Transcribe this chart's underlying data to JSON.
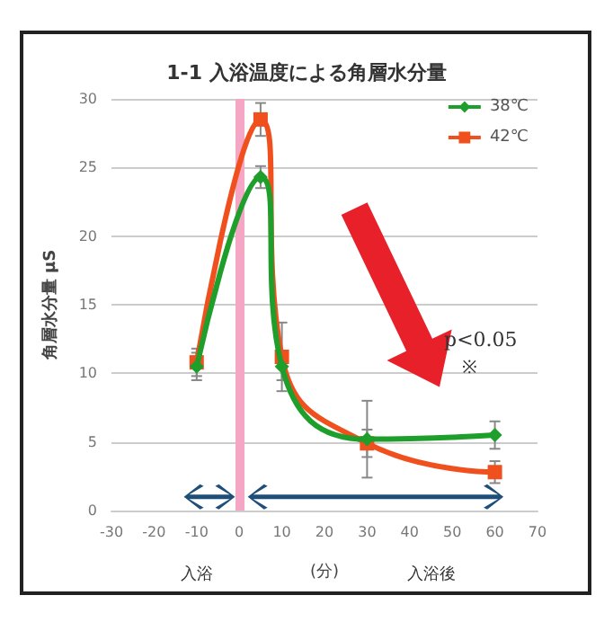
{
  "chart_data": {
    "type": "line",
    "title": "1-1 入浴温度による角層水分量",
    "xlabel": "(分)",
    "ylabel": "角層水分量 μS",
    "x": [
      -10,
      5,
      10,
      30,
      60
    ],
    "series": [
      {
        "name": "38℃",
        "color": "#1e9e2a",
        "marker": "diamond",
        "values": [
          10.5,
          24.3,
          10.5,
          5.2,
          5.5
        ],
        "errors": [
          1,
          0.8,
          1,
          2.8,
          1
        ]
      },
      {
        "name": "42℃",
        "color": "#f0501e",
        "marker": "square",
        "values": [
          10.8,
          28.5,
          11.2,
          4.9,
          2.8
        ],
        "errors": [
          1,
          1.2,
          2.5,
          1,
          0.8
        ]
      }
    ],
    "xlim": [
      -30,
      70
    ],
    "xticks": [
      -30,
      -20,
      -10,
      0,
      10,
      20,
      30,
      40,
      50,
      60,
      70
    ],
    "ylim": [
      0,
      30
    ],
    "yticks": [
      0,
      5,
      10,
      15,
      20,
      25,
      30
    ],
    "grid": "y",
    "legend": "top right",
    "ref_lines": [
      {
        "axis": "x",
        "value": 0,
        "color": "#f4a6c4"
      }
    ],
    "annotations": [
      "p<0.05",
      "※",
      "入浴",
      "入浴後"
    ]
  }
}
